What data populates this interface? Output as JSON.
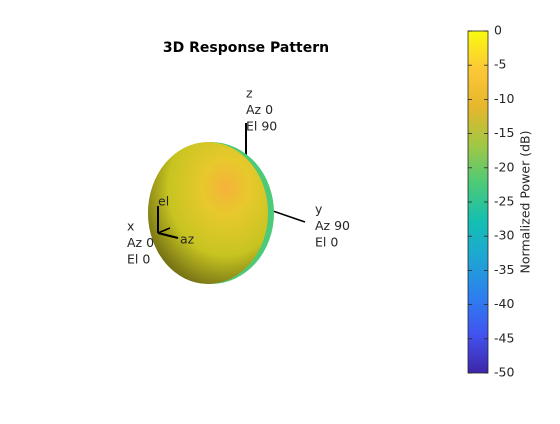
{
  "chart_data": {
    "type": "pattern3d",
    "title": "3D Response Pattern",
    "colorbar_label": "Normalized Power (dB)",
    "clim": [
      -50,
      0
    ],
    "cticks": [
      0,
      -5,
      -10,
      -15,
      -20,
      -25,
      -30,
      -35,
      -40,
      -45,
      -50
    ],
    "colormap": [
      "#3e26a8",
      "#4252ef",
      "#2d7fef",
      "#1ea5d4",
      "#14bfb1",
      "#4dca77",
      "#a1c744",
      "#e6b72c",
      "#fcc836",
      "#f9fb0e"
    ],
    "annotations": [
      {
        "lines": [
          "z",
          "Az 0",
          "El 90"
        ]
      },
      {
        "lines": [
          "y",
          "Az 90",
          "El 0"
        ]
      },
      {
        "lines": [
          "x",
          "Az 0",
          "El 0"
        ]
      }
    ],
    "local_axes": [
      "el",
      "az"
    ]
  }
}
